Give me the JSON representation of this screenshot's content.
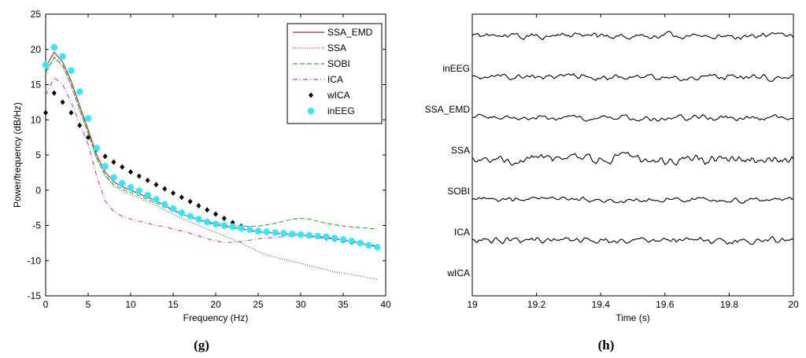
{
  "colors": {
    "SSA_EMD": "#a52a2a",
    "SSA": "#4a4a4a",
    "SOBI": "#2db82d",
    "ICA": "#c83cc8",
    "wICA": "#000000",
    "inEEG": "#33e6ff",
    "trace": "#000000"
  },
  "chart_data": [
    {
      "type": "line",
      "panel_label": "(g)",
      "xlabel": "Frequency (Hz)",
      "ylabel": "Power/frequency (dB/Hz)",
      "xlim": [
        0,
        40
      ],
      "ylim": [
        -15,
        25
      ],
      "xticks": [
        0,
        5,
        10,
        15,
        20,
        25,
        30,
        35,
        40
      ],
      "yticks": [
        -15,
        -10,
        -5,
        0,
        5,
        10,
        15,
        20,
        25
      ],
      "grid": false,
      "legend_position": "top-right",
      "x": [
        0,
        1,
        2,
        3,
        4,
        5,
        6,
        7,
        8,
        9,
        10,
        11,
        12,
        13,
        14,
        15,
        16,
        17,
        18,
        19,
        20,
        21,
        22,
        23,
        24,
        25,
        26,
        27,
        28,
        29,
        30,
        31,
        32,
        33,
        34,
        35,
        36,
        37,
        38,
        39
      ],
      "series": [
        {
          "name": "SSA_EMD",
          "style": "solid",
          "values": [
            17.5,
            19.6,
            18.2,
            15.5,
            12,
            8.6,
            5,
            2.6,
            1.2,
            0.5,
            0,
            -0.5,
            -1,
            -1.5,
            -2.2,
            -2.8,
            -3.4,
            -3.8,
            -4.2,
            -4.6,
            -4.9,
            -5.1,
            -5.3,
            -5.5,
            -5.7,
            -5.9,
            -6,
            -6.1,
            -6.2,
            -6.3,
            -6.3,
            -6.5,
            -6.6,
            -6.7,
            -6.9,
            -7.1,
            -7.3,
            -7.5,
            -7.8,
            -8
          ]
        },
        {
          "name": "SSA",
          "style": "dotted",
          "values": [
            16.5,
            18.8,
            17.5,
            14.8,
            11.3,
            8,
            4.5,
            2,
            0.6,
            -0.1,
            -0.6,
            -1.1,
            -1.6,
            -2.2,
            -2.8,
            -3.4,
            -4,
            -4.5,
            -5,
            -5.5,
            -6,
            -6.5,
            -7,
            -7.5,
            -8.1,
            -8.7,
            -9.2,
            -9.5,
            -9.8,
            -10.1,
            -10.4,
            -10.7,
            -11,
            -11.3,
            -11.6,
            -11.8,
            -12,
            -12.2,
            -12.4,
            -12.7
          ]
        },
        {
          "name": "SOBI",
          "style": "dashed",
          "values": [
            16.8,
            18.9,
            17.8,
            15,
            11.5,
            8.2,
            4.6,
            2.2,
            0.8,
            0.2,
            -0.3,
            -0.8,
            -1.3,
            -1.8,
            -2.4,
            -2.9,
            -3.4,
            -3.8,
            -4.2,
            -4.5,
            -4.7,
            -4.9,
            -5,
            -5.1,
            -5.1,
            -5.1,
            -4.9,
            -4.7,
            -4.4,
            -4.1,
            -4,
            -4.1,
            -4.4,
            -4.7,
            -4.9,
            -5.1,
            -5.2,
            -5.3,
            -5.4,
            -5.5
          ]
        },
        {
          "name": "ICA",
          "style": "dashdot",
          "values": [
            13.5,
            16,
            15,
            12.5,
            9.5,
            6.5,
            2,
            -1.5,
            -3,
            -3.7,
            -4.1,
            -4.4,
            -4.7,
            -5,
            -5.2,
            -5.5,
            -5.8,
            -6.1,
            -6.5,
            -6.9,
            -7.2,
            -7.4,
            -7.4,
            -7.3,
            -7.1,
            -6.9,
            -6.8,
            -6.7,
            -6.6,
            -6.5,
            -6.5,
            -6.6,
            -6.7,
            -6.8,
            -7,
            -7.1,
            -7.3,
            -7.5,
            -7.7,
            -7.9
          ]
        },
        {
          "name": "wICA",
          "style": "markers-diamond",
          "values": [
            11,
            13.8,
            12.5,
            11,
            9.2,
            7.5,
            5.8,
            4.8,
            4,
            3.3,
            2.6,
            2,
            1.4,
            0.8,
            0.2,
            -0.4,
            -1,
            -1.6,
            -2.2,
            -2.8,
            -3.4,
            -4,
            -4.6,
            -5.1,
            -5.5,
            -5.8,
            -6,
            -6.1,
            -6.2,
            -6.3,
            -6.4,
            -6.5,
            -6.6,
            -6.8,
            -7,
            -7.2,
            -7.4,
            -7.6,
            -7.8,
            -8
          ]
        },
        {
          "name": "inEEG",
          "style": "markers-star",
          "values": [
            17.8,
            20.3,
            19,
            17,
            14,
            10.2,
            6,
            3.4,
            1.8,
            1,
            0.4,
            -0.1,
            -0.7,
            -1.3,
            -2,
            -2.6,
            -3.2,
            -3.7,
            -4.1,
            -4.5,
            -4.8,
            -5,
            -5.2,
            -5.4,
            -5.6,
            -5.8,
            -5.9,
            -6,
            -6.1,
            -6.2,
            -6.3,
            -6.4,
            -6.5,
            -6.6,
            -6.8,
            -7,
            -7.2,
            -7.5,
            -7.8,
            -8.1
          ]
        }
      ]
    },
    {
      "type": "line",
      "panel_label": "(h)",
      "xlabel": "Time (s)",
      "xlim": [
        19,
        20
      ],
      "xticks": [
        "19",
        "19.2",
        "19.4",
        "19.6",
        "19.8",
        "20"
      ],
      "grid": false,
      "channels": [
        {
          "name": "inEEG",
          "seed": 11,
          "amplitude": 1.0
        },
        {
          "name": "SSA_EMD",
          "seed": 23,
          "amplitude": 1.0
        },
        {
          "name": "SSA",
          "seed": 37,
          "amplitude": 0.9
        },
        {
          "name": "SOBI",
          "seed": 51,
          "amplitude": 1.6
        },
        {
          "name": "ICA",
          "seed": 67,
          "amplitude": 0.8
        },
        {
          "name": "wICA",
          "seed": 79,
          "amplitude": 1.1
        }
      ]
    }
  ]
}
